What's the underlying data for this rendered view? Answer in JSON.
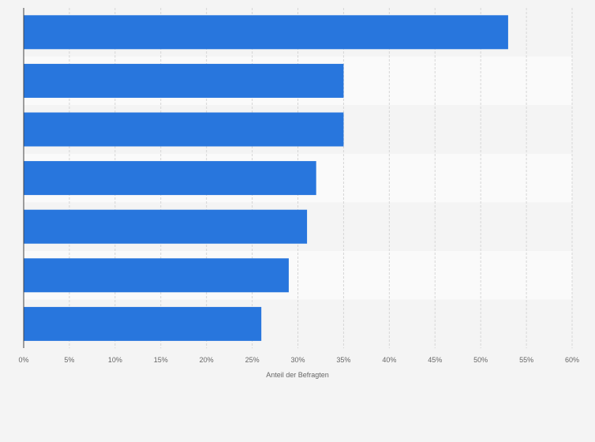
{
  "chart_data": {
    "type": "bar",
    "orientation": "horizontal",
    "categories": [
      "",
      "",
      "",
      "",
      "",
      "",
      ""
    ],
    "values": [
      53,
      35,
      35,
      32,
      31,
      29,
      26
    ],
    "xlim": [
      0,
      60
    ],
    "xticks": [
      0,
      5,
      10,
      15,
      20,
      25,
      30,
      35,
      40,
      45,
      50,
      55,
      60
    ],
    "xtick_labels": [
      "0%",
      "5%",
      "10%",
      "15%",
      "20%",
      "25%",
      "30%",
      "35%",
      "40%",
      "45%",
      "50%",
      "55%",
      "60%"
    ],
    "xlabel": "Anteil der Befragten",
    "ylabel": "",
    "grid": "vertical dashed",
    "bar_color": "#2876dd",
    "legend": "none"
  }
}
